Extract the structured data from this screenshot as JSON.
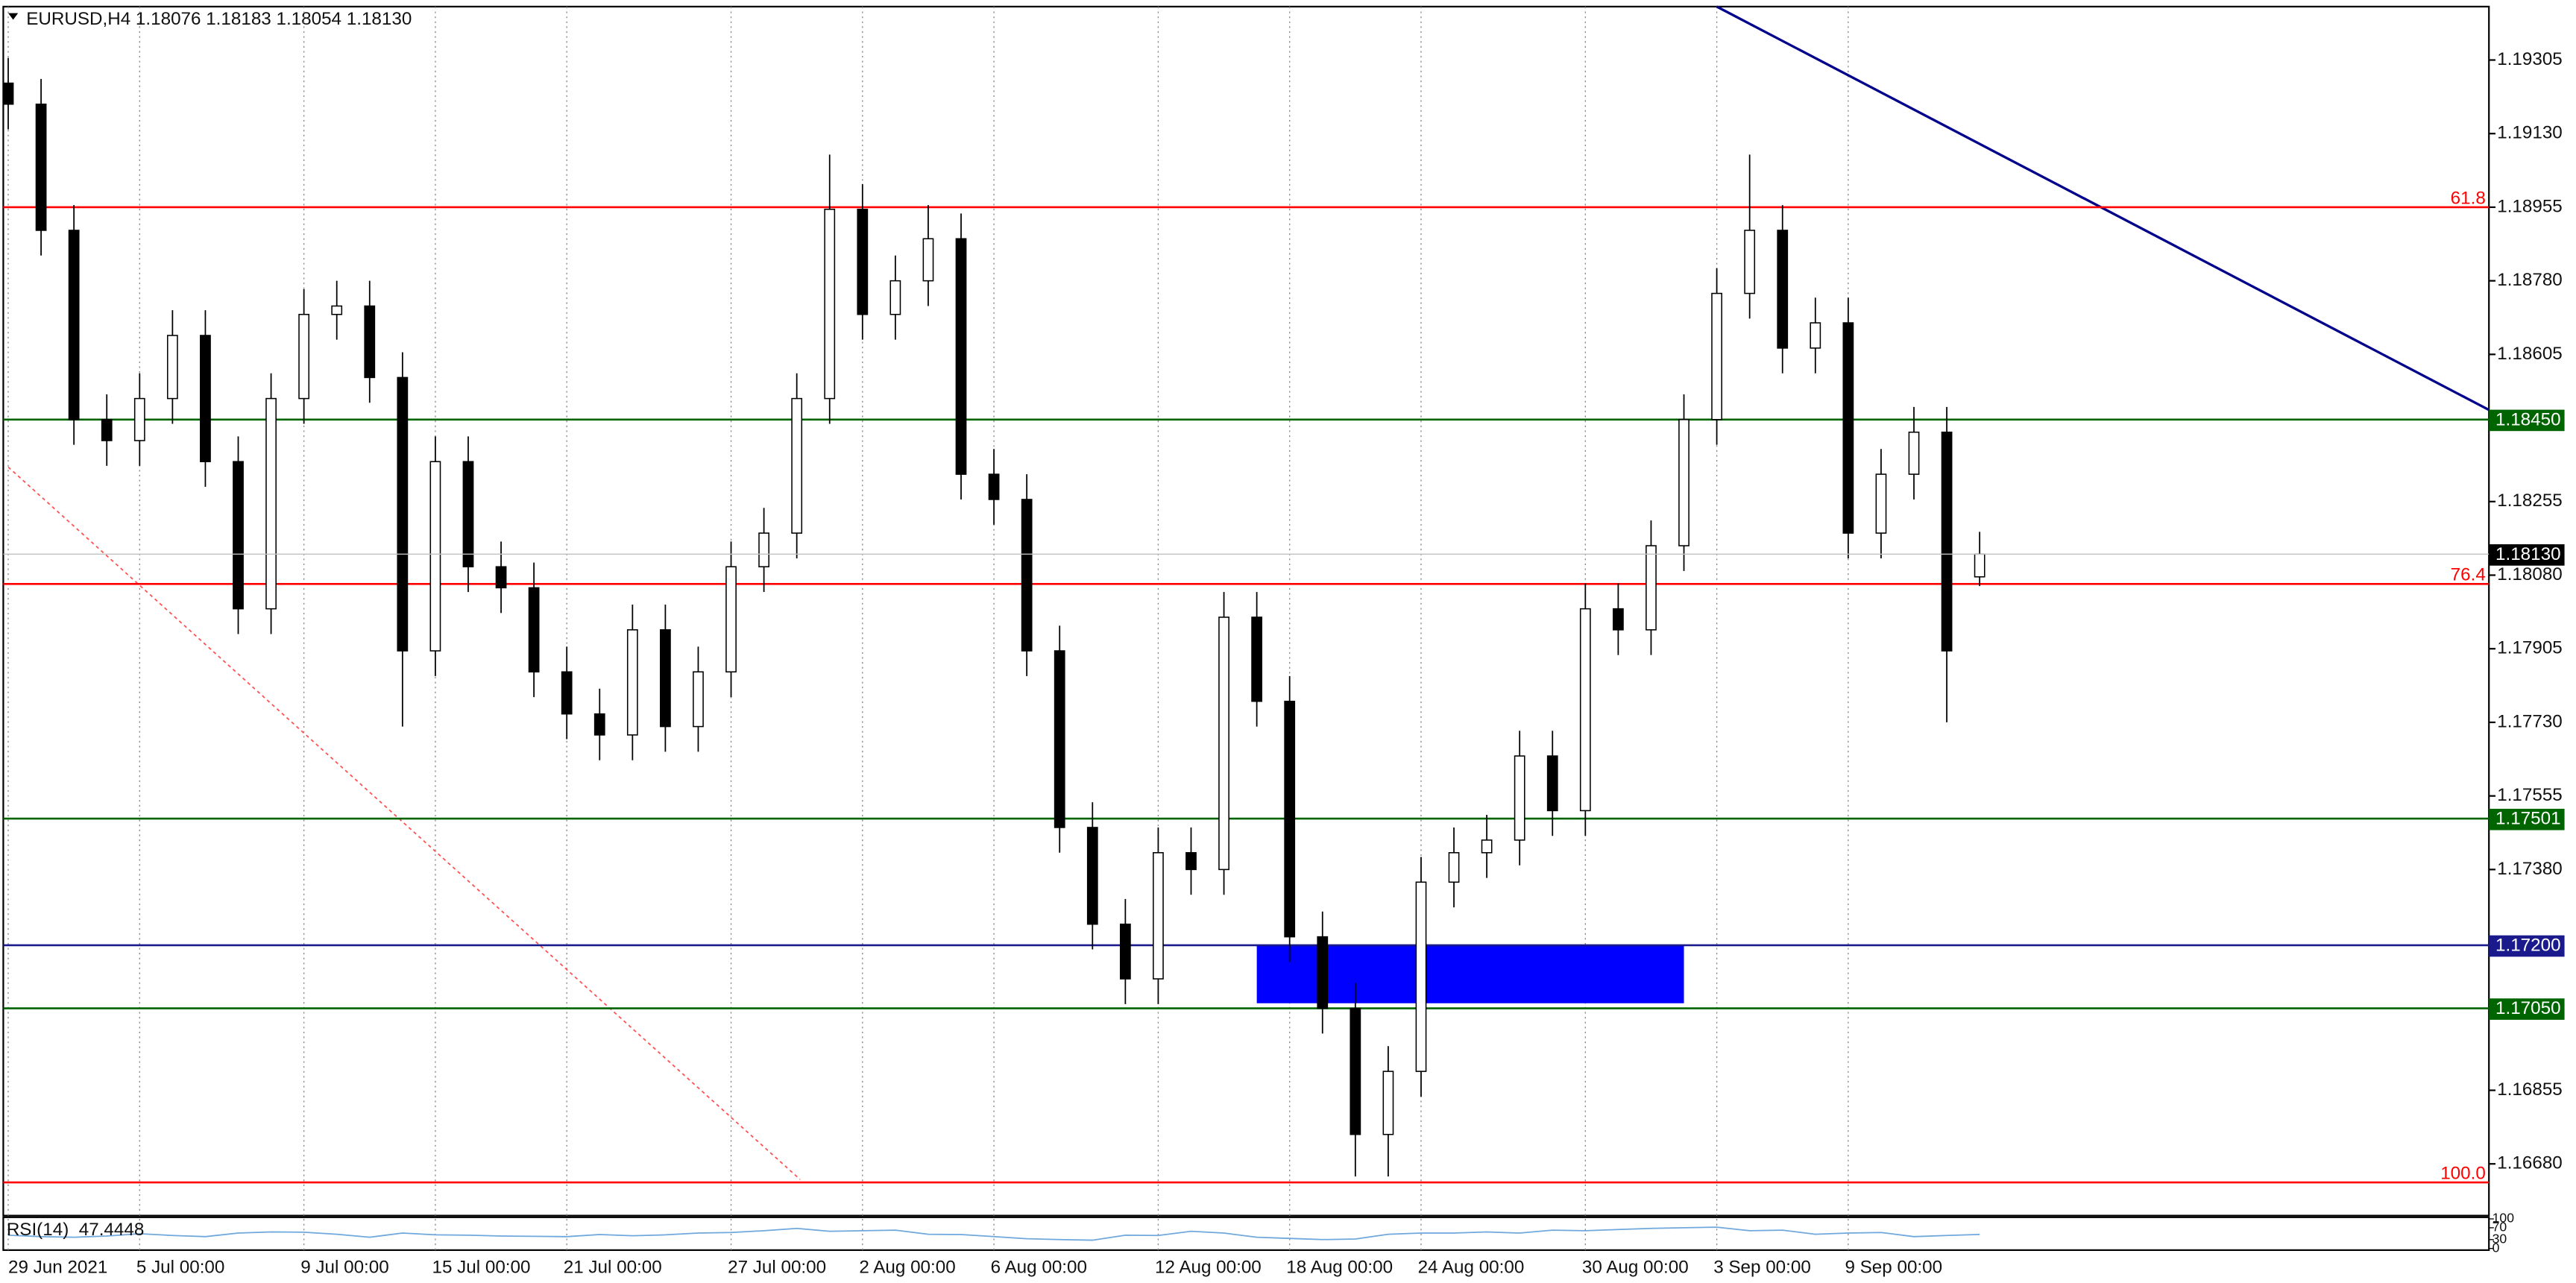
{
  "chart_data": {
    "type": "candlestick",
    "title": "EURUSD,H4  1.18076 1.18183 1.18054 1.18130",
    "categories": [
      "29 Jun 2021",
      null,
      null,
      null,
      "5 Jul 00:00",
      null,
      null,
      null,
      null,
      "9 Jul 00:00",
      null,
      null,
      null,
      "15 Jul 00:00",
      null,
      null,
      null,
      "21 Jul 00:00",
      null,
      null,
      null,
      null,
      "27 Jul 00:00",
      null,
      null,
      null,
      "2 Aug 00:00",
      null,
      null,
      null,
      "6 Aug 00:00",
      null,
      null,
      null,
      null,
      "12 Aug 00:00",
      null,
      null,
      null,
      "18 Aug 00:00",
      null,
      null,
      null,
      "24 Aug 00:00",
      null,
      null,
      null,
      null,
      "30 Aug 00:00",
      null,
      null,
      null,
      "3 Sep 00:00",
      null,
      null,
      null,
      "9 Sep 00:00",
      null,
      null,
      null,
      null
    ],
    "open": [
      1.1925,
      1.192,
      1.189,
      1.1845,
      1.184,
      1.185,
      1.1865,
      1.1835,
      1.18,
      1.185,
      1.187,
      1.1872,
      1.1855,
      1.179,
      1.1835,
      1.181,
      1.1805,
      1.1785,
      1.1775,
      1.177,
      1.1795,
      1.1772,
      1.1785,
      1.181,
      1.1818,
      1.185,
      1.1895,
      1.187,
      1.1878,
      1.1888,
      1.1832,
      1.1826,
      1.179,
      1.1748,
      1.1725,
      1.1712,
      1.1742,
      1.1738,
      1.1798,
      1.1778,
      1.1722,
      1.1705,
      1.1675,
      1.169,
      1.1735,
      1.1742,
      1.1745,
      1.1765,
      1.1752,
      1.18,
      1.1795,
      1.1815,
      1.1845,
      1.1875,
      1.189,
      1.1862,
      1.1868,
      1.1818,
      1.1832,
      1.1842,
      1.18076
    ],
    "high": [
      1.1931,
      1.1926,
      1.1896,
      1.1851,
      1.1856,
      1.1871,
      1.1871,
      1.1841,
      1.1856,
      1.1876,
      1.1878,
      1.1878,
      1.1861,
      1.1841,
      1.1841,
      1.1816,
      1.1811,
      1.1791,
      1.1781,
      1.1801,
      1.1801,
      1.1791,
      1.1816,
      1.1824,
      1.1856,
      1.1908,
      1.1901,
      1.1884,
      1.1896,
      1.1894,
      1.1838,
      1.1832,
      1.1796,
      1.1754,
      1.1731,
      1.1748,
      1.1748,
      1.1804,
      1.1804,
      1.1784,
      1.1728,
      1.1711,
      1.1696,
      1.1741,
      1.1748,
      1.1751,
      1.1771,
      1.1771,
      1.1806,
      1.1806,
      1.1821,
      1.1851,
      1.1881,
      1.1908,
      1.1896,
      1.1874,
      1.1874,
      1.1838,
      1.1848,
      1.1848,
      1.18183
    ],
    "low": [
      1.1914,
      1.1884,
      1.1839,
      1.1834,
      1.1834,
      1.1844,
      1.1829,
      1.1794,
      1.1794,
      1.1844,
      1.1864,
      1.1849,
      1.1772,
      1.1784,
      1.1804,
      1.1799,
      1.1779,
      1.1769,
      1.1764,
      1.1764,
      1.1766,
      1.1766,
      1.1779,
      1.1804,
      1.1812,
      1.1844,
      1.1864,
      1.1864,
      1.1872,
      1.1826,
      1.182,
      1.1784,
      1.1742,
      1.1719,
      1.1706,
      1.1706,
      1.1732,
      1.1732,
      1.1772,
      1.1716,
      1.1699,
      1.1665,
      1.1665,
      1.1684,
      1.1729,
      1.1736,
      1.1739,
      1.1746,
      1.1746,
      1.1789,
      1.1789,
      1.1809,
      1.1839,
      1.1869,
      1.1856,
      1.1856,
      1.1812,
      1.1812,
      1.1826,
      1.1773,
      1.18054
    ],
    "close": [
      1.192,
      1.189,
      1.1845,
      1.184,
      1.185,
      1.1865,
      1.1835,
      1.18,
      1.185,
      1.187,
      1.1872,
      1.1855,
      1.179,
      1.1835,
      1.181,
      1.1805,
      1.1785,
      1.1775,
      1.177,
      1.1795,
      1.1772,
      1.1785,
      1.181,
      1.1818,
      1.185,
      1.1895,
      1.187,
      1.1878,
      1.1888,
      1.1832,
      1.1826,
      1.179,
      1.1748,
      1.1725,
      1.1712,
      1.1742,
      1.1738,
      1.1798,
      1.1778,
      1.1722,
      1.1705,
      1.1675,
      1.169,
      1.1735,
      1.1742,
      1.1745,
      1.1765,
      1.1752,
      1.18,
      1.1795,
      1.1815,
      1.1845,
      1.1875,
      1.189,
      1.1862,
      1.1868,
      1.1818,
      1.1832,
      1.1842,
      1.179,
      1.1813
    ],
    "up_color": "#ffffff",
    "down_color": "#000000",
    "ylim": [
      1.16557,
      1.19432
    ],
    "yticks": [
      1.19305,
      {
        "value": 1.1913,
        "label": "1.19130"
      },
      1.18955,
      {
        "value": 1.1878,
        "label": "1.18780"
      },
      1.18605,
      1.18255,
      {
        "value": 1.1808,
        "label": "1.18080"
      },
      1.17905,
      {
        "value": 1.1773,
        "label": "1.17730"
      },
      1.17555,
      {
        "value": 1.1738,
        "label": "1.17380"
      },
      1.16855,
      {
        "value": 1.1668,
        "label": "1.16680"
      }
    ],
    "grid": true,
    "fib_levels": [
      {
        "value": 1.18955,
        "label": "61.8",
        "color": "#ff0000"
      },
      {
        "value": 1.18059,
        "label": "76.4",
        "color": "#ff0000"
      },
      {
        "value": 1.16636,
        "label": "100.0",
        "color": "#ff0000"
      }
    ],
    "levels": [
      {
        "value": 1.1845,
        "label": "1.18450",
        "color": "#006400"
      },
      {
        "value": 1.17501,
        "label": "1.17501",
        "color": "#006400"
      },
      {
        "value": 1.1705,
        "label": "1.17050",
        "color": "#006400"
      },
      {
        "value": 1.172,
        "label": "1.17200",
        "color": "#1a1a8c"
      }
    ],
    "zone": {
      "start": 38,
      "end": 51,
      "top": 1.172,
      "bottom": 1.17062,
      "color": "#0000ff"
    },
    "trendlines": [
      {
        "points": [
          [
            52,
            1.19432
          ],
          [
            75.5,
            1.18473
          ]
        ],
        "color": "#00008b",
        "dashed": false
      },
      {
        "points": [
          [
            0,
            1.18337
          ],
          [
            24.1,
            1.16643
          ]
        ],
        "color": "#ff5050",
        "dashed": true
      }
    ],
    "last_price": {
      "value": 1.1813,
      "label": "1.18130",
      "color": "#000000"
    },
    "rsi": {
      "name": "RSI(14)",
      "ylim": [
        0,
        100
      ],
      "yticks": [
        100,
        70,
        30,
        0
      ],
      "color": "#6fa8dc",
      "values": [
        45,
        40,
        38,
        42,
        50,
        44,
        40,
        52,
        56,
        55,
        48,
        38,
        52,
        46,
        45,
        42,
        41,
        40,
        47,
        43,
        46,
        52,
        54,
        60,
        68,
        58,
        60,
        62,
        48,
        47,
        40,
        33,
        30,
        28,
        45,
        44,
        58,
        52,
        38,
        34,
        30,
        32,
        48,
        52,
        52,
        56,
        52,
        62,
        60,
        64,
        68,
        70,
        72,
        60,
        62,
        48,
        52,
        54,
        40,
        44,
        47.4448
      ]
    }
  }
}
